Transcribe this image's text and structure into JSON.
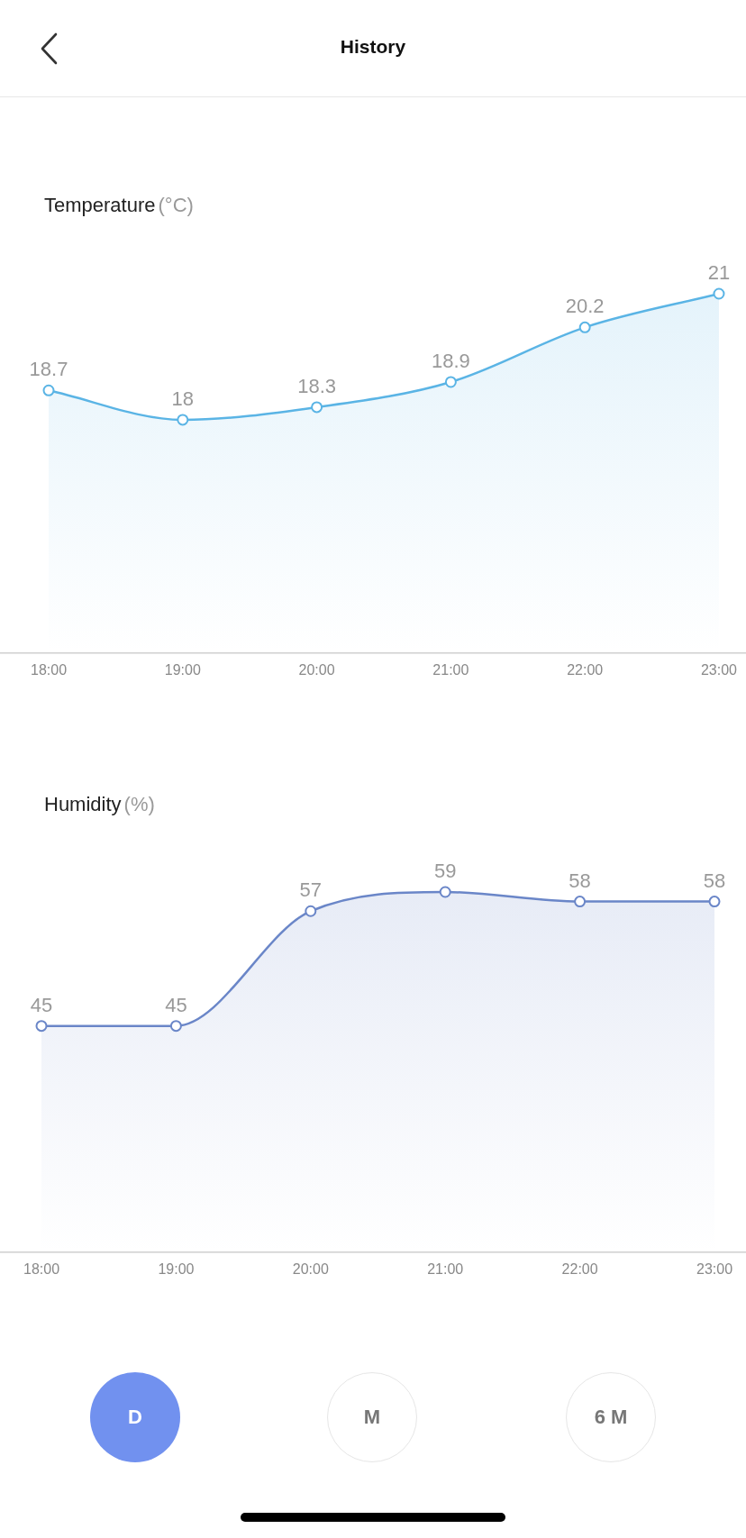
{
  "chart_data": [
    {
      "type": "area",
      "title": "Temperature",
      "ylabel": "(°C)",
      "annotations": [
        "History"
      ],
      "categories": [
        "18:00",
        "19:00",
        "20:00",
        "21:00",
        "22:00",
        "23:00"
      ],
      "values": [
        18.7,
        18,
        18.3,
        18.9,
        20.2,
        21
      ],
      "color": "#5ab4e5",
      "data_labels": true,
      "marker": "circle",
      "tick_labels": "x"
    },
    {
      "type": "area",
      "title": "Humidity",
      "ylabel": "(%)",
      "annotations": [
        "D",
        "M",
        "6 M"
      ],
      "categories": [
        "18:00",
        "19:00",
        "20:00",
        "21:00",
        "22:00",
        "23:00"
      ],
      "values": [
        45,
        45,
        57,
        59,
        58,
        58
      ],
      "color": "#6a86c8",
      "data_labels": true,
      "marker": "circle",
      "tick_labels": "x"
    }
  ]
}
